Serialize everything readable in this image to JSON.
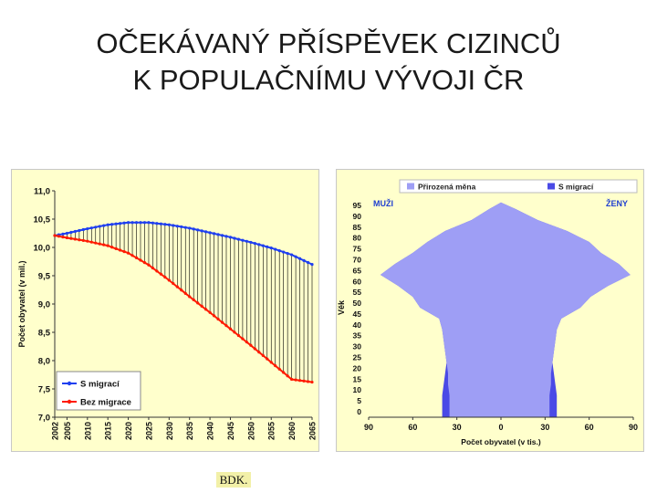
{
  "title": {
    "line1": "OČEKÁVANÝ PŘÍSPĚVEK CIZINCŮ",
    "line2": "K POPULAČNÍMU VÝVOJI ČR"
  },
  "footer": {
    "label": "BDK."
  },
  "colors": {
    "chart_bg": "#ffffcc",
    "s_migraci_line": "#1f3ff0",
    "bez_migrace_line": "#ff1a00",
    "droplines": "#000000",
    "pyramid_natural": "#9e9ef5",
    "pyramid_migration": "#4a4ae6",
    "frame": "#c8c8c8"
  },
  "chart_data": [
    {
      "type": "line",
      "ylabel": "Počet obyvatel (v mil.)",
      "xlabel": "",
      "ylim": [
        7.0,
        11.0
      ],
      "yticks": [
        "11,0",
        "10,5",
        "10,0",
        "9,5",
        "9,0",
        "8,5",
        "8,0",
        "7,5",
        "7,0"
      ],
      "ytick_values": [
        11.0,
        10.5,
        10.0,
        9.5,
        9.0,
        8.5,
        8.0,
        7.5,
        7.0
      ],
      "x": [
        2002,
        2005,
        2010,
        2015,
        2020,
        2025,
        2030,
        2035,
        2040,
        2045,
        2050,
        2055,
        2060,
        2065
      ],
      "xticks": [
        "2002",
        "2005",
        "2010",
        "2015",
        "2020",
        "2025",
        "2030",
        "2035",
        "2040",
        "2045",
        "2050",
        "2055",
        "2060",
        "2065"
      ],
      "series": [
        {
          "name": "S migrací",
          "values": [
            10.21,
            10.25,
            10.33,
            10.4,
            10.44,
            10.44,
            10.4,
            10.34,
            10.26,
            10.18,
            10.09,
            9.99,
            9.87,
            9.7
          ]
        },
        {
          "name": "Bez migrace",
          "values": [
            10.21,
            10.17,
            10.11,
            10.03,
            9.9,
            9.69,
            9.42,
            9.13,
            8.85,
            8.56,
            8.27,
            7.97,
            7.67,
            7.62
          ]
        }
      ],
      "legend": "bottom-left",
      "grid": false,
      "droplines": true
    },
    {
      "type": "area",
      "subtype": "population-pyramid",
      "legend_entries": [
        "Přirozená měna",
        "S migrací"
      ],
      "legend": "top",
      "ylabel": "Věk",
      "xlabel": "Počet obyvatel (v tis.)",
      "left_label": "MUŽI",
      "right_label": "ŽENY",
      "yticks": [
        "95",
        "90",
        "85",
        "80",
        "75",
        "70",
        "65",
        "60",
        "55",
        "50",
        "45",
        "40",
        "35",
        "30",
        "25",
        "20",
        "15",
        "10",
        "5",
        "0"
      ],
      "xticks": [
        "90",
        "60",
        "30",
        "0",
        "30",
        "60",
        "90"
      ],
      "xlim": [
        -90,
        90
      ],
      "ylim": [
        0,
        100
      ],
      "ages": [
        0,
        5,
        10,
        15,
        20,
        25,
        30,
        35,
        40,
        45,
        50,
        55,
        60,
        65,
        70,
        75,
        80,
        85,
        90,
        95,
        98
      ],
      "series": [
        {
          "name": "Přirozená měna",
          "side": "MUŽI",
          "values": [
            40,
            40,
            40,
            39,
            38,
            37,
            38,
            39,
            40,
            42,
            55,
            60,
            70,
            82,
            72,
            60,
            50,
            38,
            20,
            8,
            0
          ]
        },
        {
          "name": "S migrací",
          "side": "MUŽI",
          "values": [
            35,
            35,
            35,
            36,
            36,
            37,
            38,
            39,
            40,
            42,
            55,
            60,
            70,
            82,
            72,
            60,
            50,
            38,
            20,
            8,
            0
          ]
        },
        {
          "name": "Přirozená měna",
          "side": "ŽENY",
          "values": [
            38,
            38,
            38,
            37,
            36,
            35,
            36,
            37,
            38,
            41,
            54,
            61,
            73,
            88,
            80,
            68,
            60,
            45,
            25,
            10,
            0
          ]
        },
        {
          "name": "S migrací",
          "side": "ŽENY",
          "values": [
            33,
            33,
            33,
            34,
            34,
            35,
            36,
            37,
            38,
            41,
            54,
            61,
            73,
            88,
            80,
            68,
            60,
            45,
            25,
            10,
            0
          ]
        }
      ]
    }
  ]
}
